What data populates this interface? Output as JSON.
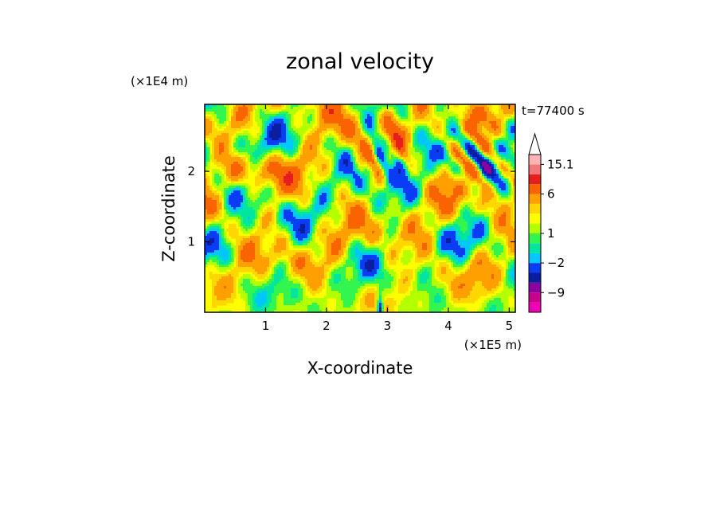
{
  "chart_data": {
    "type": "heatmap",
    "title": "zonal velocity",
    "xlabel": "X-coordinate",
    "ylabel": "Z-coordinate",
    "x_unit": "(×1E5 m)",
    "y_unit": "(×1E4 m)",
    "time_label": "t=77400 s",
    "xlim": [
      0,
      5.1
    ],
    "ylim": [
      0,
      2.95
    ],
    "x_ticks": [
      "1",
      "2",
      "3",
      "4",
      "5"
    ],
    "y_ticks": [
      "1",
      "2"
    ],
    "colorbar": {
      "boundaries": [
        -15,
        -12,
        -9,
        -6,
        -4,
        -2,
        -1,
        0,
        1,
        2,
        3,
        4,
        6,
        9,
        12,
        15.1
      ],
      "colors": [
        "#f000b4",
        "#c8008c",
        "#8c00a0",
        "#0a1ea0",
        "#0a3cf5",
        "#00c8ff",
        "#00e6a0",
        "#32f550",
        "#b4ff00",
        "#ffff00",
        "#ffd700",
        "#ffa000",
        "#fa6400",
        "#e61e1e",
        "#f07878",
        "#ffb4b4"
      ],
      "labels": [
        "15.1",
        "6",
        "1",
        "−2",
        "−9"
      ],
      "extend_max": true
    }
  }
}
